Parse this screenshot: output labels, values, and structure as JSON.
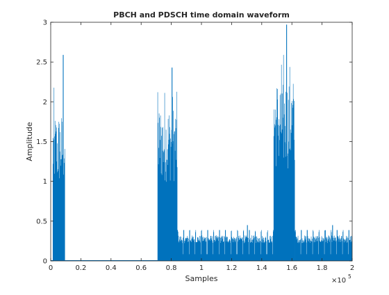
{
  "chart_data": {
    "type": "line",
    "title": "PBCH and PDSCH time domain waveform",
    "xlabel": "Samples",
    "ylabel": "Amplitude",
    "x_exponent": "×10",
    "x_exponent_power": "5",
    "xlim": [
      0,
      200000
    ],
    "ylim": [
      0,
      3
    ],
    "xticks": [
      0,
      20000,
      40000,
      60000,
      80000,
      100000,
      120000,
      140000,
      160000,
      180000,
      200000
    ],
    "xtick_labels": [
      "0",
      "0.2",
      "0.4",
      "0.6",
      "0.8",
      "1",
      "1.2",
      "1.4",
      "1.6",
      "1.8",
      "2"
    ],
    "yticks": [
      0,
      0.5,
      1,
      1.5,
      2,
      2.5,
      3
    ],
    "ytick_labels": [
      "0",
      "0.5",
      "1",
      "1.5",
      "2",
      "2.5",
      "3"
    ],
    "grid": false,
    "line_color": "#0072BD",
    "series": [
      {
        "segments": [
          {
            "x_start": 1500,
            "x_end": 9500,
            "envelope_max": 2.25,
            "typical": 1.7,
            "peak_x": 8300,
            "peak_y": 2.59
          },
          {
            "x_start": 71000,
            "x_end": 84000,
            "envelope_max": 2.24,
            "typical": 1.8,
            "peak_x": 80500,
            "peak_y": 2.43
          },
          {
            "x_start": 84000,
            "x_end": 148000,
            "envelope_max": 0.38,
            "typical": 0.28,
            "peak_x": 130500,
            "peak_y": 0.45
          },
          {
            "x_start": 148000,
            "x_end": 162000,
            "envelope_max": 2.6,
            "typical": 2.1,
            "peak_x": 156500,
            "peak_y": 2.97
          },
          {
            "x_start": 162000,
            "x_end": 200000,
            "envelope_max": 0.38,
            "typical": 0.28,
            "peak_x": 187000,
            "peak_y": 0.45
          }
        ]
      }
    ]
  }
}
